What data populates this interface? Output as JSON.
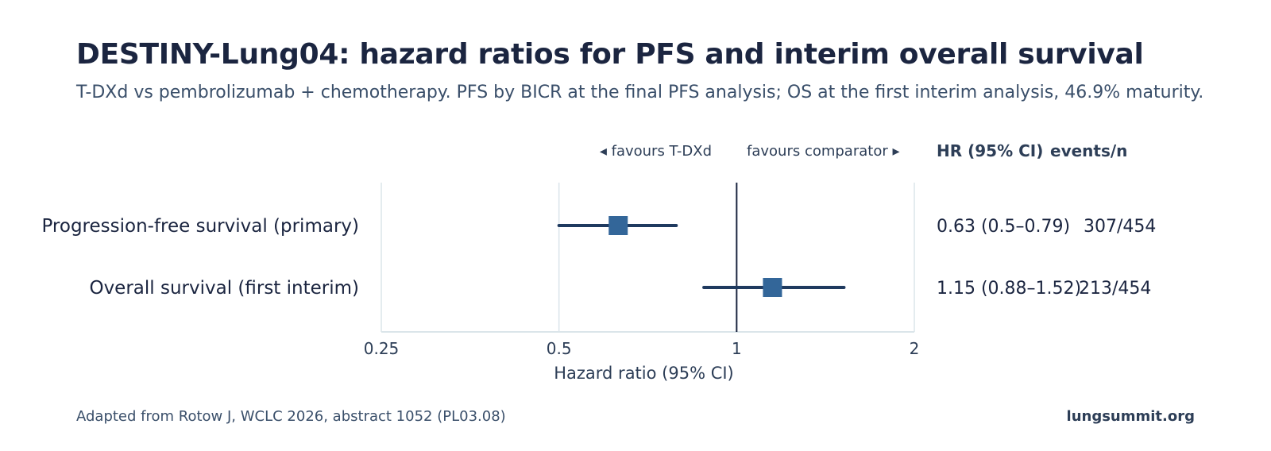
{
  "header": {
    "title": "DESTINY-Lung04: hazard ratios for PFS and interim overall survival",
    "subtitle": "T-DXd vs pembrolizumab + chemotherapy. PFS by BICR at the final PFS analysis; OS at the first interim analysis, 46.9% maturity."
  },
  "favours": {
    "left": "◂ favours T-DXd",
    "right": "favours comparator ▸"
  },
  "columns": {
    "hr": "HR (95% CI)",
    "events": "events/n"
  },
  "footer": {
    "source": "Adapted from Rotow J, WCLC 2026, abstract 1052 (PL03.08)",
    "site": "lungsummit.org"
  },
  "colors": {
    "marker": "#336699",
    "whisker": "#1f3a5f",
    "reference_line": "#1b2540",
    "grid": "#dbe5ea"
  },
  "chart_data": {
    "type": "forest",
    "xlabel": "Hazard ratio (95% CI)",
    "x_scale": "log2",
    "xlim": [
      0.25,
      2
    ],
    "xticks": [
      0.25,
      0.5,
      1,
      2
    ],
    "xtick_labels": [
      "0.25",
      "0.5",
      "1",
      "2"
    ],
    "reference": 1,
    "rows": [
      {
        "label": "Progression-free survival (primary)",
        "hr": 0.63,
        "lo": 0.5,
        "hi": 0.79,
        "hr_text": "0.63 (0.5–0.79)",
        "events_text": "307/454"
      },
      {
        "label": "Overall survival (first interim)",
        "hr": 1.15,
        "lo": 0.88,
        "hi": 1.52,
        "hr_text": "1.15 (0.88–1.52)",
        "events_text": "213/454"
      }
    ]
  }
}
